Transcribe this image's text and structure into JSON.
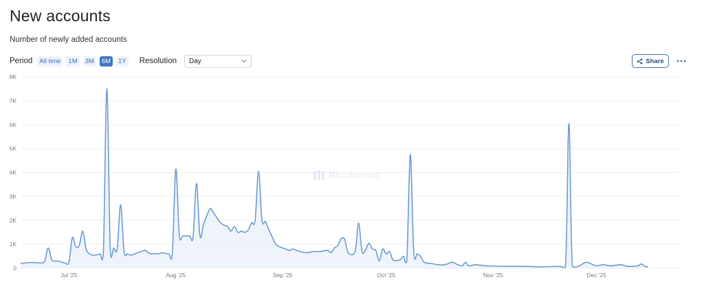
{
  "header": {
    "title": "New accounts",
    "subtitle": "Number of newly added accounts"
  },
  "controls": {
    "period_label": "Period",
    "periods": [
      "All time",
      "1M",
      "3M",
      "6M",
      "1Y"
    ],
    "active_period": "6M",
    "resolution_label": "Resolution",
    "resolution_value": "Day",
    "share_label": "Share"
  },
  "icons": {
    "share": "share-icon",
    "more": "more-dots-icon",
    "select": "chevron-down-icon",
    "watermark": "blockscout-logo-icon"
  },
  "watermark": "Blockscout",
  "colors": {
    "line": "#6b9bd0",
    "area": "#e8f0fa",
    "accent": "#3f76c4",
    "grid": "#eeeeee"
  },
  "chart_data": {
    "type": "area",
    "title": "New accounts",
    "xlabel": "",
    "ylabel": "",
    "grid": true,
    "x_range": [
      "2025-06-17",
      "2025-12-25"
    ],
    "ylim": [
      0,
      8000
    ],
    "y_ticks": [
      0,
      1000,
      2000,
      3000,
      4000,
      5000,
      6000,
      7000,
      8000
    ],
    "y_tick_labels": [
      "0",
      "1K",
      "2K",
      "3K",
      "4K",
      "5K",
      "6K",
      "7K",
      "8K"
    ],
    "x_ticks": [
      "2025-07-01",
      "2025-08-01",
      "2025-09-01",
      "2025-10-01",
      "2025-11-01",
      "2025-12-01"
    ],
    "x_tick_labels": [
      "Jul '25",
      "Aug '25",
      "Sep '25",
      "Oct '25",
      "Nov '25",
      "Dec '25"
    ],
    "series": [
      {
        "points": [
          [
            "2025-06-17",
            200
          ],
          [
            "2025-06-19",
            230
          ],
          [
            "2025-06-21",
            240
          ],
          [
            "2025-06-23",
            220
          ],
          [
            "2025-06-24",
            300
          ],
          [
            "2025-06-25",
            850
          ],
          [
            "2025-06-26",
            350
          ],
          [
            "2025-06-27",
            300
          ],
          [
            "2025-06-28",
            300
          ],
          [
            "2025-06-29",
            250
          ],
          [
            "2025-06-30",
            220
          ],
          [
            "2025-07-01",
            250
          ],
          [
            "2025-07-02",
            1280
          ],
          [
            "2025-07-03",
            900
          ],
          [
            "2025-07-04",
            950
          ],
          [
            "2025-07-05",
            1550
          ],
          [
            "2025-07-06",
            800
          ],
          [
            "2025-07-07",
            600
          ],
          [
            "2025-07-08",
            550
          ],
          [
            "2025-07-09",
            560
          ],
          [
            "2025-07-10",
            600
          ],
          [
            "2025-07-11",
            650
          ],
          [
            "2025-07-12",
            7500
          ],
          [
            "2025-07-13",
            800
          ],
          [
            "2025-07-14",
            850
          ],
          [
            "2025-07-15",
            800
          ],
          [
            "2025-07-16",
            2650
          ],
          [
            "2025-07-17",
            700
          ],
          [
            "2025-07-18",
            600
          ],
          [
            "2025-07-19",
            550
          ],
          [
            "2025-07-20",
            600
          ],
          [
            "2025-07-21",
            650
          ],
          [
            "2025-07-22",
            700
          ],
          [
            "2025-07-23",
            750
          ],
          [
            "2025-07-24",
            650
          ],
          [
            "2025-07-25",
            600
          ],
          [
            "2025-07-26",
            620
          ],
          [
            "2025-07-27",
            600
          ],
          [
            "2025-07-28",
            650
          ],
          [
            "2025-07-29",
            620
          ],
          [
            "2025-07-30",
            600
          ],
          [
            "2025-07-31",
            650
          ],
          [
            "2025-08-01",
            4150
          ],
          [
            "2025-08-02",
            1400
          ],
          [
            "2025-08-03",
            1350
          ],
          [
            "2025-08-04",
            1350
          ],
          [
            "2025-08-05",
            1350
          ],
          [
            "2025-08-06",
            1300
          ],
          [
            "2025-08-07",
            3550
          ],
          [
            "2025-08-08",
            1350
          ],
          [
            "2025-08-09",
            1800
          ],
          [
            "2025-08-10",
            2200
          ],
          [
            "2025-08-11",
            2500
          ],
          [
            "2025-08-12",
            2300
          ],
          [
            "2025-08-13",
            2100
          ],
          [
            "2025-08-14",
            1900
          ],
          [
            "2025-08-15",
            1800
          ],
          [
            "2025-08-16",
            1750
          ],
          [
            "2025-08-17",
            1550
          ],
          [
            "2025-08-18",
            1750
          ],
          [
            "2025-08-19",
            1500
          ],
          [
            "2025-08-20",
            1550
          ],
          [
            "2025-08-21",
            1500
          ],
          [
            "2025-08-22",
            1600
          ],
          [
            "2025-08-23",
            1900
          ],
          [
            "2025-08-24",
            2000
          ],
          [
            "2025-08-25",
            4050
          ],
          [
            "2025-08-26",
            2000
          ],
          [
            "2025-08-27",
            1950
          ],
          [
            "2025-08-28",
            1600
          ],
          [
            "2025-08-29",
            1300
          ],
          [
            "2025-08-30",
            1000
          ],
          [
            "2025-08-31",
            900
          ],
          [
            "2025-09-01",
            850
          ],
          [
            "2025-09-03",
            750
          ],
          [
            "2025-09-04",
            800
          ],
          [
            "2025-09-06",
            700
          ],
          [
            "2025-09-08",
            650
          ],
          [
            "2025-09-10",
            700
          ],
          [
            "2025-09-12",
            700
          ],
          [
            "2025-09-14",
            750
          ],
          [
            "2025-09-15",
            650
          ],
          [
            "2025-09-16",
            850
          ],
          [
            "2025-09-17",
            950
          ],
          [
            "2025-09-18",
            1250
          ],
          [
            "2025-09-19",
            1200
          ],
          [
            "2025-09-20",
            650
          ],
          [
            "2025-09-22",
            700
          ],
          [
            "2025-09-23",
            1900
          ],
          [
            "2025-09-24",
            700
          ],
          [
            "2025-09-25",
            750
          ],
          [
            "2025-09-26",
            1050
          ],
          [
            "2025-09-27",
            800
          ],
          [
            "2025-09-28",
            750
          ],
          [
            "2025-09-29",
            300
          ],
          [
            "2025-09-30",
            800
          ],
          [
            "2025-10-01",
            600
          ],
          [
            "2025-10-02",
            700
          ],
          [
            "2025-10-03",
            350
          ],
          [
            "2025-10-05",
            350
          ],
          [
            "2025-10-06",
            500
          ],
          [
            "2025-10-07",
            350
          ],
          [
            "2025-10-08",
            4750
          ],
          [
            "2025-10-09",
            700
          ],
          [
            "2025-10-10",
            600
          ],
          [
            "2025-10-11",
            500
          ],
          [
            "2025-10-12",
            250
          ],
          [
            "2025-10-14",
            200
          ],
          [
            "2025-10-16",
            150
          ],
          [
            "2025-10-18",
            150
          ],
          [
            "2025-10-20",
            250
          ],
          [
            "2025-10-21",
            200
          ],
          [
            "2025-10-23",
            100
          ],
          [
            "2025-10-24",
            250
          ],
          [
            "2025-10-25",
            100
          ],
          [
            "2025-10-27",
            150
          ],
          [
            "2025-10-30",
            100
          ],
          [
            "2025-11-05",
            80
          ],
          [
            "2025-11-10",
            80
          ],
          [
            "2025-11-15",
            60
          ],
          [
            "2025-11-20",
            80
          ],
          [
            "2025-11-22",
            50
          ],
          [
            "2025-11-23",
            6050
          ],
          [
            "2025-11-24",
            80
          ],
          [
            "2025-11-26",
            100
          ],
          [
            "2025-11-28",
            250
          ],
          [
            "2025-11-30",
            150
          ],
          [
            "2025-12-01",
            100
          ],
          [
            "2025-12-03",
            150
          ],
          [
            "2025-12-05",
            100
          ],
          [
            "2025-12-08",
            150
          ],
          [
            "2025-12-10",
            80
          ],
          [
            "2025-12-13",
            100
          ],
          [
            "2025-12-14",
            180
          ],
          [
            "2025-12-15",
            80
          ],
          [
            "2025-12-16",
            60
          ]
        ]
      }
    ]
  }
}
